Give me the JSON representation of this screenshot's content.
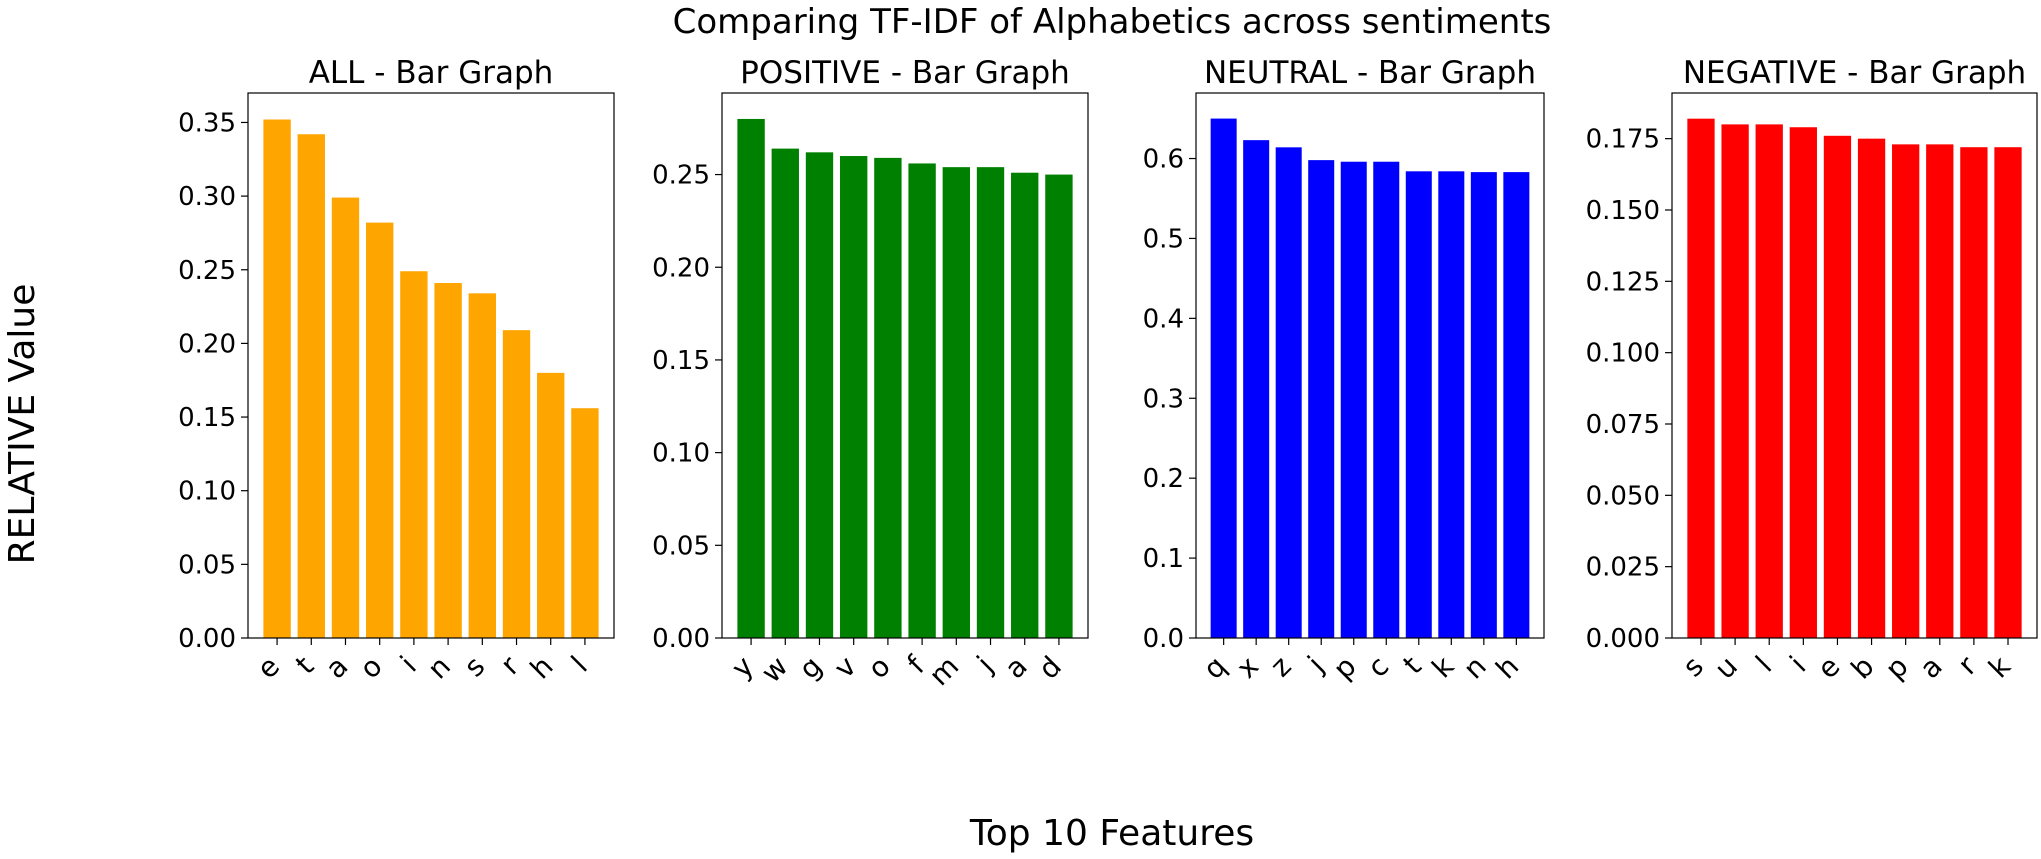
{
  "figure": {
    "title": "Comparing TF-IDF of Alphabetics across sentiments",
    "xlabel": "Top 10 Features",
    "ylabel": "RELATIVE Value"
  },
  "chart_data": [
    {
      "type": "bar",
      "title": "ALL - Bar Graph",
      "color": "#ffa500",
      "categories": [
        "e",
        "t",
        "a",
        "o",
        "i",
        "n",
        "s",
        "r",
        "h",
        "l"
      ],
      "values": [
        0.352,
        0.342,
        0.299,
        0.282,
        0.249,
        0.241,
        0.234,
        0.209,
        0.18,
        0.156
      ],
      "ylim": [
        0,
        0.37
      ],
      "yticks": [
        0.0,
        0.05,
        0.1,
        0.15,
        0.2,
        0.25,
        0.3,
        0.35
      ],
      "ytick_labels": [
        "0.00",
        "0.05",
        "0.10",
        "0.15",
        "0.20",
        "0.25",
        "0.30",
        "0.35"
      ]
    },
    {
      "type": "bar",
      "title": "POSITIVE - Bar Graph",
      "color": "#008000",
      "categories": [
        "y",
        "w",
        "g",
        "v",
        "o",
        "f",
        "m",
        "j",
        "a",
        "d"
      ],
      "values": [
        0.28,
        0.264,
        0.262,
        0.26,
        0.259,
        0.256,
        0.254,
        0.254,
        0.251,
        0.25
      ],
      "ylim": [
        0,
        0.294
      ],
      "yticks": [
        0.0,
        0.05,
        0.1,
        0.15,
        0.2,
        0.25
      ],
      "ytick_labels": [
        "0.00",
        "0.05",
        "0.10",
        "0.15",
        "0.20",
        "0.25"
      ]
    },
    {
      "type": "bar",
      "title": "NEUTRAL - Bar Graph",
      "color": "#0000ff",
      "categories": [
        "q",
        "x",
        "z",
        "j",
        "p",
        "c",
        "t",
        "k",
        "n",
        "h"
      ],
      "values": [
        0.65,
        0.623,
        0.614,
        0.598,
        0.596,
        0.596,
        0.584,
        0.584,
        0.583,
        0.583
      ],
      "ylim": [
        0,
        0.682
      ],
      "yticks": [
        0.0,
        0.1,
        0.2,
        0.3,
        0.4,
        0.5,
        0.6
      ],
      "ytick_labels": [
        "0.0",
        "0.1",
        "0.2",
        "0.3",
        "0.4",
        "0.5",
        "0.6"
      ]
    },
    {
      "type": "bar",
      "title": "NEGATIVE - Bar Graph",
      "color": "#ff0000",
      "categories": [
        "s",
        "u",
        "l",
        "i",
        "e",
        "b",
        "p",
        "a",
        "r",
        "k"
      ],
      "values": [
        0.182,
        0.18,
        0.18,
        0.179,
        0.176,
        0.175,
        0.173,
        0.173,
        0.172,
        0.172
      ],
      "ylim": [
        0,
        0.191
      ],
      "yticks": [
        0.0,
        0.025,
        0.05,
        0.075,
        0.1,
        0.125,
        0.15,
        0.175
      ],
      "ytick_labels": [
        "0.000",
        "0.025",
        "0.050",
        "0.075",
        "0.100",
        "0.125",
        "0.150",
        "0.175"
      ]
    }
  ]
}
